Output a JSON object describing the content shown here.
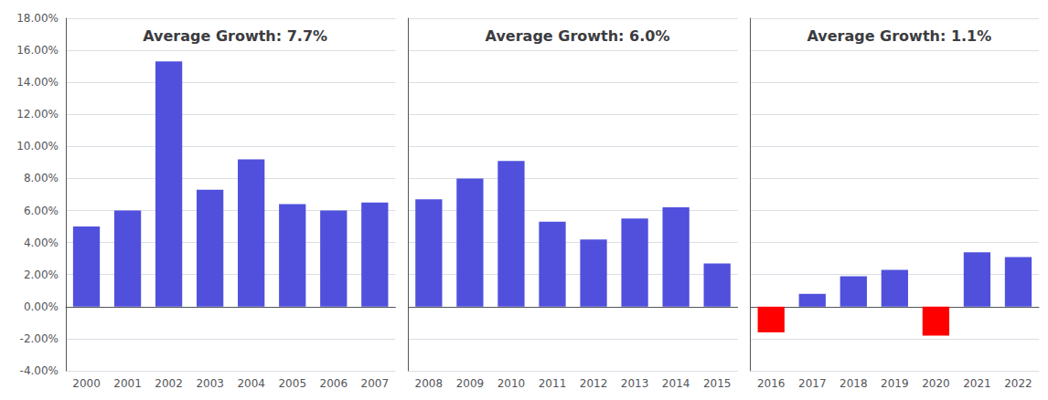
{
  "chart_data": [
    {
      "type": "bar",
      "categories": [
        "2000",
        "2001",
        "2002",
        "2003",
        "2004",
        "2005",
        "2006",
        "2007"
      ],
      "values": [
        5.0,
        6.0,
        15.3,
        7.3,
        9.2,
        6.4,
        6.0,
        6.5
      ],
      "colors": [
        "#5050dd",
        "#5050dd",
        "#5050dd",
        "#5050dd",
        "#5050dd",
        "#5050dd",
        "#5050dd",
        "#5050dd"
      ],
      "annotation": "Average Growth: 7.7%",
      "ylim": [
        -4.0,
        18.0
      ],
      "yticks": [
        {
          "value": -4.0,
          "label": "-4.00%"
        },
        {
          "value": -2.0,
          "label": "-2.00%"
        },
        {
          "value": 0.0,
          "label": "0.00%"
        },
        {
          "value": 2.0,
          "label": "2.00%"
        },
        {
          "value": 4.0,
          "label": "4.00%"
        },
        {
          "value": 6.0,
          "label": "6.00%"
        },
        {
          "value": 8.0,
          "label": "8.00%"
        },
        {
          "value": 10.0,
          "label": "10.00%"
        },
        {
          "value": 12.0,
          "label": "12.00%"
        },
        {
          "value": 14.0,
          "label": "14.00%"
        },
        {
          "value": 16.0,
          "label": "16.00%"
        },
        {
          "value": 18.0,
          "label": "18.00%"
        }
      ],
      "grid": true
    },
    {
      "type": "bar",
      "categories": [
        "2008",
        "2009",
        "2010",
        "2011",
        "2012",
        "2013",
        "2014",
        "2015"
      ],
      "values": [
        6.7,
        8.0,
        9.1,
        5.3,
        4.2,
        5.5,
        6.2,
        2.7
      ],
      "colors": [
        "#5050dd",
        "#5050dd",
        "#5050dd",
        "#5050dd",
        "#5050dd",
        "#5050dd",
        "#5050dd",
        "#5050dd"
      ],
      "annotation": "Average Growth: 6.0%",
      "ylim": [
        -4.0,
        18.0
      ],
      "yticks": [
        -4.0,
        -2.0,
        0.0,
        2.0,
        4.0,
        6.0,
        8.0,
        10.0,
        12.0,
        14.0,
        16.0,
        18.0
      ],
      "tick_labels": "x",
      "grid": true
    },
    {
      "type": "bar",
      "categories": [
        "2016",
        "2017",
        "2018",
        "2019",
        "2020",
        "2021",
        "2022"
      ],
      "values": [
        -1.6,
        0.8,
        1.9,
        2.3,
        -1.8,
        3.4,
        3.1
      ],
      "colors": [
        "#ff0000",
        "#5050dd",
        "#5050dd",
        "#5050dd",
        "#ff0000",
        "#5050dd",
        "#5050dd"
      ],
      "annotation": "Average Growth: 1.1%",
      "ylim": [
        -4.0,
        18.0
      ],
      "yticks": [
        -4.0,
        -2.0,
        0.0,
        2.0,
        4.0,
        6.0,
        8.0,
        10.0,
        12.0,
        14.0,
        16.0,
        18.0
      ],
      "tick_labels": "x",
      "grid": true
    }
  ]
}
